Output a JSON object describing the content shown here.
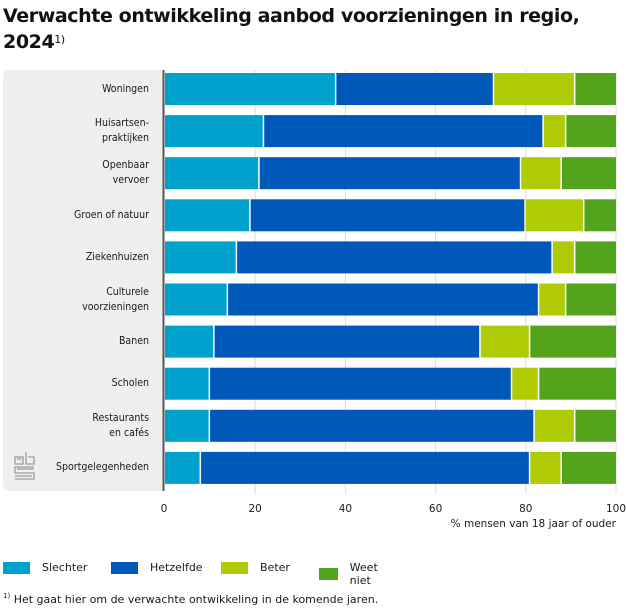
{
  "header": {
    "title": "Verwachte ontwikkeling aanbod voorzieningen in regio, 2024",
    "title_line1": "Verwachte ontwikkeling aanbod voorzieningen in regio,",
    "title_line2": "2024",
    "title_footnote_marker": "1)"
  },
  "footnote": {
    "marker": "1)",
    "text": "Het gaat hier om de verwachte ontwikkeling in de komende jaren."
  },
  "logo": {
    "name": "cbs-logo-icon"
  },
  "chart_data": {
    "type": "bar",
    "orientation": "horizontal",
    "stacked": true,
    "title": "Verwachte ontwikkeling aanbod voorzieningen in regio, 2024",
    "xlabel": "% mensen van 18 jaar of ouder",
    "ylabel": "",
    "xlim": [
      0,
      100
    ],
    "xticks": [
      0,
      20,
      40,
      60,
      80,
      100
    ],
    "grid": true,
    "legend_position": "bottom-left",
    "categories": [
      [
        "Woningen"
      ],
      [
        "Huisartsen-",
        "praktijken"
      ],
      [
        "Openbaar",
        "vervoer"
      ],
      [
        "Groen of natuur"
      ],
      [
        "Ziekenhuizen"
      ],
      [
        "Culturele",
        "voorzieningen"
      ],
      [
        "Banen"
      ],
      [
        "Scholen"
      ],
      [
        "Restaurants",
        "en cafés"
      ],
      [
        "Sportgelegenheden"
      ]
    ],
    "series": [
      {
        "name": "Slechter",
        "color": "#00a1cd",
        "values": [
          38,
          22,
          21,
          19,
          16,
          14,
          11,
          10,
          10,
          8
        ]
      },
      {
        "name": "Hetzelfde",
        "color": "#0058b8",
        "values": [
          35,
          62,
          58,
          61,
          70,
          69,
          59,
          67,
          72,
          73
        ]
      },
      {
        "name": "Beter",
        "color": "#afcb05",
        "values": [
          18,
          5,
          9,
          13,
          5,
          6,
          11,
          6,
          9,
          7
        ]
      },
      {
        "name": "Weet niet",
        "color": "#53a31d",
        "values": [
          9,
          11,
          12,
          7,
          9,
          11,
          19,
          17,
          9,
          12
        ]
      }
    ]
  }
}
